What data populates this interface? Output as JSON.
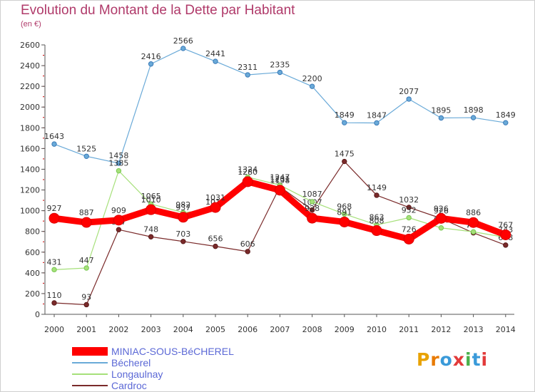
{
  "header": {
    "title": "Evolution du Montant de la Dette par Habitant",
    "unit": "(en €)"
  },
  "colors": {
    "title": "#b03a6a",
    "legend_text": "#5b68d6",
    "axis": "#555555",
    "grid_dot": "#cc0000"
  },
  "legend": [
    {
      "label": "MINIAC-SOUS-BéCHEREL",
      "color": "#ff0000"
    },
    {
      "label": "Bécherel",
      "color": "#6aaad8"
    },
    {
      "label": "Longaulnay",
      "color": "#a6e07a"
    },
    {
      "label": "Cardroc",
      "color": "#7a2a2a"
    }
  ],
  "logo": {
    "text": "Proxiti",
    "letter_colors": [
      "#e8a200",
      "#e87a00",
      "#3a9ad9",
      "#e23a3a",
      "#4ab04a",
      "#3a9ad9",
      "#e23a3a"
    ]
  },
  "chart_data": {
    "type": "line",
    "x": [
      "2000",
      "2001",
      "2002",
      "2003",
      "2004",
      "2005",
      "2006",
      "2007",
      "2008",
      "2009",
      "2010",
      "2011",
      "2012",
      "2013",
      "2014"
    ],
    "ylim": [
      0,
      2600
    ],
    "yticks": [
      0,
      200,
      400,
      600,
      800,
      1000,
      1200,
      1400,
      1600,
      1800,
      2000,
      2200,
      2400,
      2600
    ],
    "grid": false,
    "legend_position": "bottom-left",
    "series": [
      {
        "name": "Bécherel",
        "color": "#6aaad8",
        "marker": "#3a7ab8",
        "values": [
          1643,
          1525,
          1458,
          2416,
          2566,
          2441,
          2311,
          2335,
          2200,
          1849,
          1847,
          2077,
          1895,
          1898,
          1849
        ]
      },
      {
        "name": "Cardroc",
        "color": "#7a2a2a",
        "marker": "#5a1a1a",
        "values": [
          110,
          93,
          817,
          748,
          703,
          656,
          606,
          1231,
          1007,
          1475,
          1149,
          1032,
          926,
          786,
          668
        ]
      },
      {
        "name": "Longaulnay",
        "color": "#a6e07a",
        "marker": "#78c850",
        "values": [
          431,
          447,
          1385,
          1065,
          982,
          1011,
          1324,
          1247,
          1087,
          968,
          863,
          932,
          834,
          796,
          743
        ]
      },
      {
        "name": "MINIAC-SOUS-BéCHEREL",
        "color": "#ff0000",
        "marker": "#dd0000",
        "values": [
          927,
          887,
          909,
          1010,
          937,
          1031,
          1280,
          1198,
          928,
          891,
          808,
          726,
          926,
          886,
          767
        ]
      }
    ]
  }
}
